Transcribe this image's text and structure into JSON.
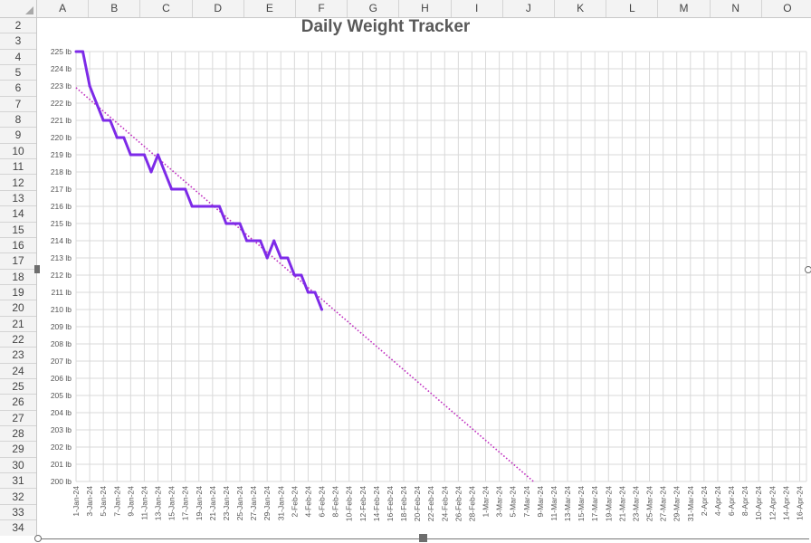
{
  "spreadsheet": {
    "columns": [
      "A",
      "B",
      "C",
      "D",
      "E",
      "F",
      "G",
      "H",
      "I",
      "J",
      "K",
      "L",
      "M",
      "N",
      "O"
    ],
    "rows": [
      2,
      3,
      4,
      5,
      6,
      7,
      8,
      9,
      10,
      11,
      12,
      13,
      14,
      15,
      16,
      17,
      18,
      19,
      20,
      21,
      22,
      23,
      24,
      25,
      26,
      27,
      28,
      29,
      30,
      31,
      32,
      33,
      34
    ]
  },
  "colors": {
    "series": "#7d2ae8",
    "trendline": "#c030c0",
    "grid": "#d9d9d9"
  },
  "chart_data": {
    "type": "line",
    "title": "Daily Weight Tracker",
    "xlabel": "",
    "ylabel": "",
    "ylim": [
      200,
      225
    ],
    "y_ticks": [
      "225 lb",
      "224 lb",
      "223 lb",
      "222 lb",
      "221 lb",
      "220 lb",
      "219 lb",
      "218 lb",
      "217 lb",
      "216 lb",
      "215 lb",
      "214 lb",
      "213 lb",
      "212 lb",
      "211 lb",
      "210 lb",
      "209 lb",
      "208 lb",
      "207 lb",
      "206 lb",
      "205 lb",
      "204 lb",
      "203 lb",
      "202 lb",
      "201 lb",
      "200 lb"
    ],
    "x_ticks": [
      "1-Jan-24",
      "3-Jan-24",
      "5-Jan-24",
      "7-Jan-24",
      "9-Jan-24",
      "11-Jan-24",
      "13-Jan-24",
      "15-Jan-24",
      "17-Jan-24",
      "19-Jan-24",
      "21-Jan-24",
      "23-Jan-24",
      "25-Jan-24",
      "27-Jan-24",
      "29-Jan-24",
      "31-Jan-24",
      "2-Feb-24",
      "4-Feb-24",
      "6-Feb-24",
      "8-Feb-24",
      "10-Feb-24",
      "12-Feb-24",
      "14-Feb-24",
      "16-Feb-24",
      "18-Feb-24",
      "20-Feb-24",
      "22-Feb-24",
      "24-Feb-24",
      "26-Feb-24",
      "28-Feb-24",
      "1-Mar-24",
      "3-Mar-24",
      "5-Mar-24",
      "7-Mar-24",
      "9-Mar-24",
      "11-Mar-24",
      "13-Mar-24",
      "15-Mar-24",
      "17-Mar-24",
      "19-Mar-24",
      "21-Mar-24",
      "23-Mar-24",
      "25-Mar-24",
      "27-Mar-24",
      "29-Mar-24",
      "31-Mar-24",
      "2-Apr-24",
      "4-Apr-24",
      "6-Apr-24",
      "8-Apr-24",
      "10-Apr-24",
      "12-Apr-24",
      "14-Apr-24",
      "16-Apr-24"
    ],
    "x_range": [
      "1-Jan-24",
      "17-Apr-24"
    ],
    "grid": "on",
    "legend": "none",
    "series": [
      {
        "x": [
          "1-Jan-24",
          "2-Jan-24",
          "3-Jan-24",
          "4-Jan-24",
          "5-Jan-24",
          "6-Jan-24",
          "7-Jan-24",
          "8-Jan-24",
          "9-Jan-24",
          "10-Jan-24",
          "11-Jan-24",
          "12-Jan-24",
          "13-Jan-24",
          "14-Jan-24",
          "15-Jan-24",
          "16-Jan-24",
          "17-Jan-24",
          "18-Jan-24",
          "19-Jan-24",
          "20-Jan-24",
          "21-Jan-24",
          "22-Jan-24",
          "23-Jan-24",
          "24-Jan-24",
          "25-Jan-24",
          "26-Jan-24",
          "27-Jan-24",
          "28-Jan-24",
          "29-Jan-24",
          "30-Jan-24",
          "31-Jan-24",
          "1-Feb-24",
          "2-Feb-24",
          "3-Feb-24",
          "4-Feb-24",
          "5-Feb-24",
          "6-Feb-24"
        ],
        "values": [
          225,
          225,
          223,
          222,
          221,
          221,
          220,
          220,
          219,
          219,
          219,
          218,
          219,
          218,
          217,
          217,
          217,
          216,
          216,
          216,
          216,
          216,
          215,
          215,
          215,
          214,
          214,
          214,
          213,
          214,
          213,
          213,
          212,
          212,
          211,
          211,
          210
        ]
      }
    ],
    "trendline": {
      "type": "linear",
      "x": [
        "1-Jan-24",
        "8-Mar-24"
      ],
      "values": [
        222.9,
        200
      ]
    }
  }
}
